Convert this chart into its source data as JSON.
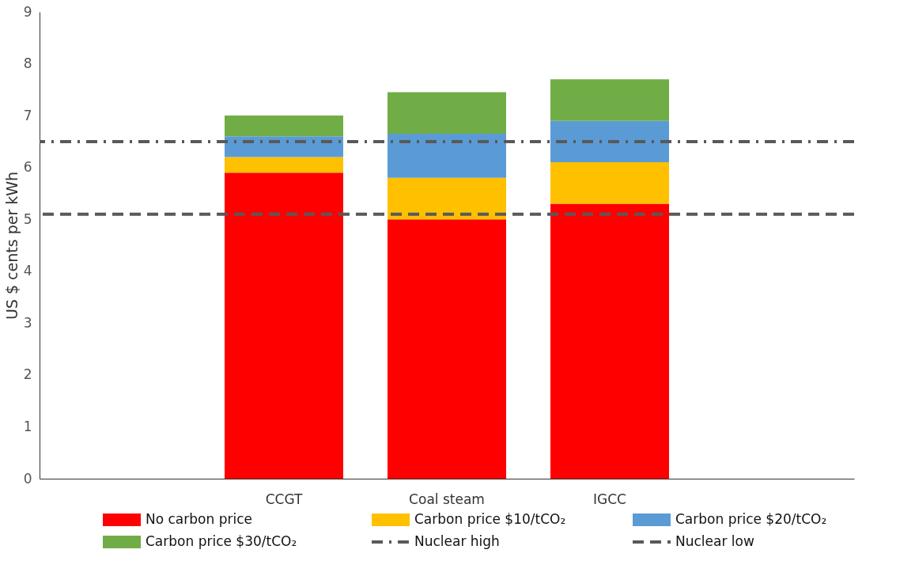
{
  "chart_data": {
    "type": "bar",
    "stacked": true,
    "ylabel": "US $ cents per kWh",
    "categories": [
      null,
      "CCGT",
      "Coal steam",
      "IGCC",
      null
    ],
    "series": [
      {
        "name": "No carbon price",
        "color": "#ff0000",
        "values": [
          null,
          5.9,
          5.0,
          5.3,
          null
        ]
      },
      {
        "name": "Carbon price $10/tCO₂",
        "color": "#ffc000",
        "values": [
          null,
          0.3,
          0.8,
          0.8,
          null
        ]
      },
      {
        "name": "Carbon price $20/tCO₂",
        "color": "#5b9bd5",
        "values": [
          null,
          0.4,
          0.85,
          0.8,
          null
        ]
      },
      {
        "name": "Carbon price $30/tCO₂",
        "color": "#70ad47",
        "values": [
          null,
          0.4,
          0.8,
          0.8,
          null
        ]
      }
    ],
    "ref_lines": [
      {
        "axis": "y",
        "value": 6.5,
        "label": "Nuclear high",
        "color": "#595959",
        "line_style": "dashdot"
      },
      {
        "axis": "y",
        "value": 5.1,
        "label": "Nuclear low",
        "color": "#595959",
        "line_style": "dashed"
      }
    ],
    "ylim": [
      0,
      9
    ],
    "yticks": [
      0,
      1,
      2,
      3,
      4,
      5,
      6,
      7,
      8,
      9
    ],
    "grid": false,
    "legend": "bottom"
  }
}
